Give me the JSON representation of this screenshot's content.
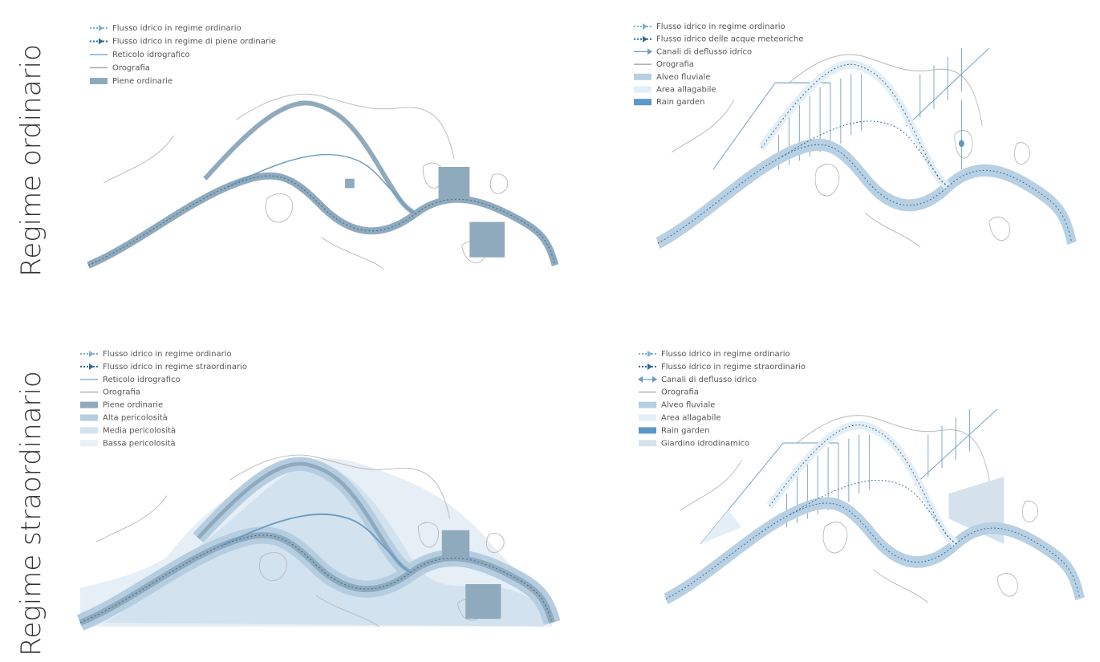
{
  "rows": [
    "Regime ordinario",
    "Regime straordinario"
  ],
  "panels": [
    {
      "legend": [
        "Flusso idrico in regime ordinario",
        "Flusso idrico in regime di piene ordinarie",
        "Reticolo idrografico",
        "Orografia",
        "Piene ordinarie"
      ]
    },
    {
      "legend": [
        "Flusso idrico in regime ordinario",
        "Flusso idrico delle acque meteoriche",
        "Canali di deflusso idrico",
        "Orografia",
        "Alveo fluviale",
        "Area allagabile",
        "Rain garden"
      ]
    },
    {
      "legend": [
        "Flusso idrico in regime ordinario",
        "Flusso idrico in regime straordinario",
        "Reticolo idrografico",
        "Orografia",
        "Piene ordinarie",
        "Alta pericolosità",
        "Media pericolosità",
        "Bassa pericolosità"
      ]
    },
    {
      "legend": [
        "Flusso idrico in regime ordinario",
        "Flusso idrico in regime straordinario",
        "Canali di deflusso idrico",
        "Orografia",
        "Alveo fluviale",
        "Area allagabile",
        "Rain garden",
        "Giardino idrodinamico"
      ]
    }
  ]
}
